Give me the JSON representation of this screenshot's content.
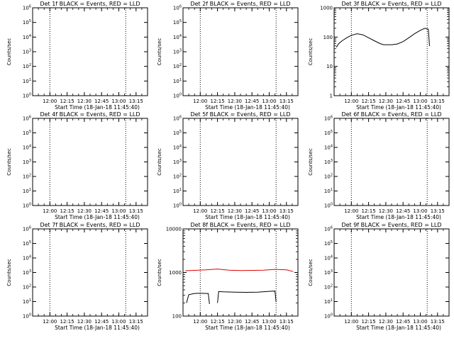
{
  "window": {
    "background": "#ffffff",
    "data_color": "#000000",
    "lld_color": "#dd0000"
  },
  "chart_data": [
    {
      "type": "line",
      "title": "Det 1f BLACK = Events, RED = LLD",
      "ylabel": "Counts/sec",
      "xlabel": "Start Time (18-Jan-18 11:45:40)",
      "xlim": [
        "11:45",
        "13:25"
      ],
      "ylim": [
        1,
        1000000
      ],
      "yscale": "log",
      "y_ticklabels": [
        "10^0",
        "10^1",
        "10^2",
        "10^3",
        "10^4",
        "10^5",
        "10^6"
      ],
      "x_ticklabels": [
        "12:00",
        "12:15",
        "12:30",
        "12:45",
        "13:00",
        "13:15"
      ],
      "vlines": [
        "12:00",
        "13:06"
      ],
      "series": []
    },
    {
      "type": "line",
      "title": "Det 2f BLACK = Events, RED = LLD",
      "ylabel": "Counts/sec",
      "xlabel": "Start Time (18-Jan-18 11:45:40)",
      "xlim": [
        "11:45",
        "13:25"
      ],
      "ylim": [
        1,
        1000000
      ],
      "yscale": "log",
      "y_ticklabels": [
        "10^0",
        "10^1",
        "10^2",
        "10^3",
        "10^4",
        "10^5",
        "10^6"
      ],
      "x_ticklabels": [
        "12:00",
        "12:15",
        "12:30",
        "12:45",
        "13:00",
        "13:15"
      ],
      "vlines": [
        "12:00",
        "13:06"
      ],
      "series": []
    },
    {
      "type": "line",
      "title": "Det 3f BLACK = Events, RED = LLD",
      "ylabel": "Counts/sec",
      "xlabel": "Start Time (18-Jan-18 11:45:40)",
      "xlim": [
        "11:45",
        "13:25"
      ],
      "ylim": [
        1,
        1000
      ],
      "yscale": "log",
      "y_ticklabels": [
        "1",
        "10",
        "100",
        "1000"
      ],
      "x_ticklabels": [
        "12:00",
        "12:15",
        "12:30",
        "12:45",
        "13:00",
        "13:15"
      ],
      "vlines": [
        "12:00",
        "13:06"
      ],
      "series": [
        {
          "color": "#000000",
          "segments": [
            {
              "x": [
                "11:47",
                "11:49",
                "11:52",
                "11:56",
                "12:00",
                "12:05",
                "12:10",
                "12:15",
                "12:20",
                "12:25",
                "12:28",
                "12:31",
                "12:35",
                "12:40",
                "12:45",
                "12:50",
                "12:55",
                "13:00",
                "13:04",
                "13:07",
                "13:08"
              ],
              "y": [
                45,
                60,
                75,
                95,
                115,
                130,
                120,
                95,
                75,
                60,
                55,
                55,
                55,
                58,
                70,
                95,
                130,
                170,
                200,
                185,
                50
              ]
            }
          ]
        }
      ]
    },
    {
      "type": "line",
      "title": "Det 4f BLACK = Events, RED = LLD",
      "ylabel": "Counts/sec",
      "xlabel": "Start Time (18-Jan-18 11:45:40)",
      "xlim": [
        "11:45",
        "13:25"
      ],
      "ylim": [
        1,
        1000000
      ],
      "yscale": "log",
      "y_ticklabels": [
        "10^0",
        "10^1",
        "10^2",
        "10^3",
        "10^4",
        "10^5",
        "10^6"
      ],
      "x_ticklabels": [
        "12:00",
        "12:15",
        "12:30",
        "12:45",
        "13:00",
        "13:15"
      ],
      "vlines": [
        "12:00",
        "13:06"
      ],
      "series": []
    },
    {
      "type": "line",
      "title": "Det 5f BLACK = Events, RED = LLD",
      "ylabel": "Counts/sec",
      "xlabel": "Start Time (18-Jan-18 11:45:40)",
      "xlim": [
        "11:45",
        "13:25"
      ],
      "ylim": [
        1,
        1000000
      ],
      "yscale": "log",
      "y_ticklabels": [
        "10^0",
        "10^1",
        "10^2",
        "10^3",
        "10^4",
        "10^5",
        "10^6"
      ],
      "x_ticklabels": [
        "12:00",
        "12:15",
        "12:30",
        "12:45",
        "13:00",
        "13:15"
      ],
      "vlines": [
        "12:00",
        "13:06"
      ],
      "series": []
    },
    {
      "type": "line",
      "title": "Det 6f BLACK = Events, RED = LLD",
      "ylabel": "Counts/sec",
      "xlabel": "Start Time (18-Jan-18 11:45:40)",
      "xlim": [
        "11:45",
        "13:25"
      ],
      "ylim": [
        1,
        1000000
      ],
      "yscale": "log",
      "y_ticklabels": [
        "10^0",
        "10^1",
        "10^2",
        "10^3",
        "10^4",
        "10^5",
        "10^6"
      ],
      "x_ticklabels": [
        "12:00",
        "12:15",
        "12:30",
        "12:45",
        "13:00",
        "13:15"
      ],
      "vlines": [
        "12:00",
        "13:06"
      ],
      "series": []
    },
    {
      "type": "line",
      "title": "Det 7f BLACK = Events, RED = LLD",
      "ylabel": "Counts/sec",
      "xlabel": "Start Time (18-Jan-18 11:45:40)",
      "xlim": [
        "11:45",
        "13:25"
      ],
      "ylim": [
        1,
        1000000
      ],
      "yscale": "log",
      "y_ticklabels": [
        "10^0",
        "10^1",
        "10^2",
        "10^3",
        "10^4",
        "10^5",
        "10^6"
      ],
      "x_ticklabels": [
        "12:00",
        "12:15",
        "12:30",
        "12:45",
        "13:00",
        "13:15"
      ],
      "vlines": [
        "12:00",
        "13:06"
      ],
      "series": []
    },
    {
      "type": "line",
      "title": "Det 8f BLACK = Events, RED = LLD",
      "ylabel": "Counts/sec",
      "xlabel": "Start Time (18-Jan-18 11:45:40)",
      "xlim": [
        "11:45",
        "13:25"
      ],
      "ylim": [
        100,
        10000
      ],
      "yscale": "log",
      "y_ticklabels": [
        "100",
        "1000",
        "10000"
      ],
      "x_ticklabels": [
        "12:00",
        "12:15",
        "12:30",
        "12:45",
        "13:00",
        "13:15"
      ],
      "vlines": [
        "12:00",
        "13:06"
      ],
      "series": [
        {
          "color": "#000000",
          "segments": [
            {
              "x": [
                "11:48",
                "11:50",
                "11:55",
                "12:00",
                "12:05",
                "12:07",
                "12:08"
              ],
              "y": [
                200,
                310,
                330,
                335,
                330,
                330,
                190
              ]
            },
            {
              "x": [
                "12:15",
                "12:16",
                "12:20",
                "12:30",
                "12:40",
                "12:50",
                "13:00",
                "13:05",
                "13:06"
              ],
              "y": [
                200,
                365,
                360,
                355,
                350,
                355,
                370,
                375,
                210
              ]
            }
          ]
        },
        {
          "color": "#dd0000",
          "segments": [
            {
              "x": [
                "11:47",
                "11:55",
                "12:05",
                "12:15",
                "12:25",
                "12:35",
                "12:45",
                "12:55",
                "13:05",
                "13:15",
                "13:21"
              ],
              "y": [
                1100,
                1120,
                1150,
                1200,
                1130,
                1110,
                1120,
                1130,
                1180,
                1150,
                1050
              ]
            }
          ]
        }
      ]
    },
    {
      "type": "line",
      "title": "Det 9f BLACK = Events, RED = LLD",
      "ylabel": "Counts/sec",
      "xlabel": "Start Time (18-Jan-18 11:45:40)",
      "xlim": [
        "11:45",
        "13:25"
      ],
      "ylim": [
        1,
        1000000
      ],
      "yscale": "log",
      "y_ticklabels": [
        "10^0",
        "10^1",
        "10^2",
        "10^3",
        "10^4",
        "10^5",
        "10^6"
      ],
      "x_ticklabels": [
        "12:00",
        "12:15",
        "12:30",
        "12:45",
        "13:00",
        "13:15"
      ],
      "vlines": [
        "12:00",
        "13:06"
      ],
      "series": []
    }
  ]
}
